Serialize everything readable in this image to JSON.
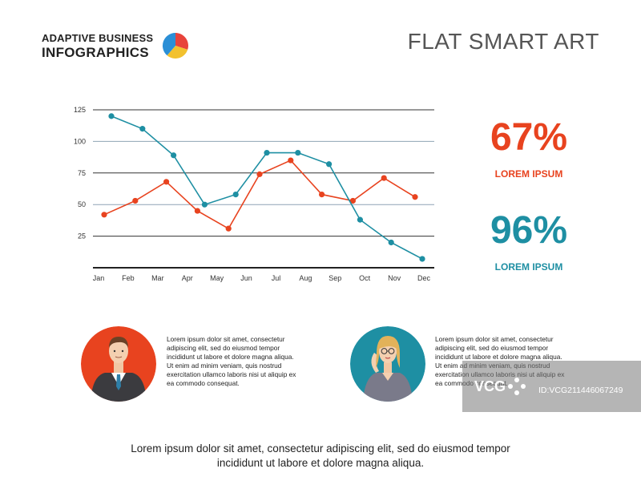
{
  "header": {
    "brand_line1": "ADAPTIVE BUSINESS",
    "brand_line2": "INFOGRAPHICS",
    "title": "FLAT SMART ART"
  },
  "colors": {
    "red": "#e8431f",
    "teal": "#1e8fa3",
    "pie_blue": "#2b8fd6",
    "pie_yellow": "#f2c12e",
    "pie_red": "#e8433b"
  },
  "chart_data": {
    "type": "line",
    "title": "",
    "xlabel": "",
    "ylabel": "",
    "categories": [
      "Jan",
      "Feb",
      "Mar",
      "Apr",
      "May",
      "Jun",
      "Jul",
      "Aug",
      "Sep",
      "Oct",
      "Nov",
      "Dec"
    ],
    "yticks": [
      "25",
      "50",
      "75",
      "100",
      "125"
    ],
    "ylim": [
      0,
      125
    ],
    "grid": true,
    "series": [
      {
        "name": "red",
        "color": "#e8431f",
        "values": [
          42,
          53,
          68,
          45,
          31,
          74,
          85,
          58,
          53,
          71,
          56,
          null
        ]
      },
      {
        "name": "teal",
        "color": "#1e8fa3",
        "values": [
          120,
          110,
          89,
          50,
          58,
          91,
          91,
          82,
          38,
          20,
          7,
          null
        ]
      }
    ]
  },
  "stats": [
    {
      "value": "67%",
      "label": "LOREM IPSUM",
      "color": "#e8431f"
    },
    {
      "value": "96%",
      "label": "LOREM IPSUM",
      "color": "#1e8fa3"
    }
  ],
  "people": [
    {
      "role": "man",
      "text": "Lorem ipsum dolor sit amet, consectetur adipiscing elit, sed do eiusmod tempor incididunt ut labore et dolore magna aliqua. Ut enim ad minim veniam, quis nostrud exercitation ullamco laboris nisi ut aliquip ex ea commodo consequat."
    },
    {
      "role": "woman",
      "text": "Lorem ipsum dolor sit amet, consectetur adipiscing elit, sed do eiusmod tempor incididunt ut labore et dolore magna aliqua. Ut enim ad minim veniam, quis nostrud exercitation ullamco laboris nisi ut aliquip ex ea commodo consequat."
    }
  ],
  "footer": {
    "line1": "Lorem ipsum dolor sit amet, consectetur adipiscing elit, sed do eiusmod tempor",
    "line2": "incididunt ut labore et dolore magna aliqua."
  },
  "watermark": {
    "text": "ID:VCG211446067249",
    "brand": "VCG"
  }
}
